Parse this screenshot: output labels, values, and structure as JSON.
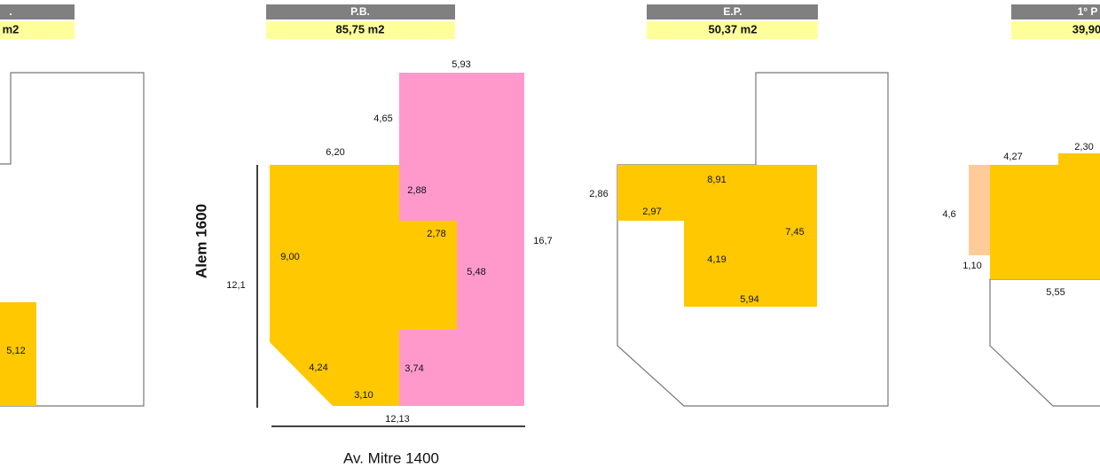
{
  "panels": [
    {
      "title": ".",
      "area": "m2",
      "labels": [
        "5,12"
      ]
    },
    {
      "title": "P.B.",
      "area": "85,75 m2",
      "labels": [
        "5,93",
        "4,65",
        "6,20",
        "2,88",
        "2,78",
        "9,00",
        "5,48",
        "16,7",
        "12,1",
        "4,24",
        "3,74",
        "3,10",
        "12,13"
      ],
      "streets": [
        "Alem 1600",
        "Av. Mitre 1400"
      ]
    },
    {
      "title": "E.P.",
      "area": "50,37 m2",
      "labels": [
        "8,91",
        "2,86",
        "2,97",
        "7,45",
        "4,19",
        "5,94"
      ]
    },
    {
      "title": "1° P",
      "area": "39,90",
      "labels": [
        "4,27",
        "2,30",
        "4,6",
        "1,10",
        "5,55"
      ]
    }
  ]
}
